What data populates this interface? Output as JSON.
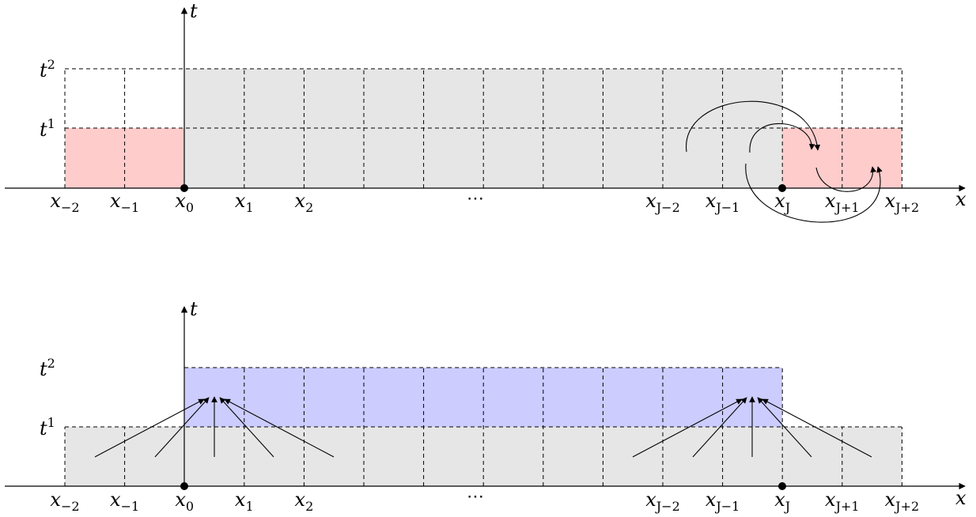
{
  "axis_labels": {
    "t": "t",
    "x": "x"
  },
  "time_labels": [
    {
      "base": "t",
      "sup": "1"
    },
    {
      "base": "t",
      "sup": "2"
    }
  ],
  "x_labels": [
    {
      "base": "x",
      "sub": "−2"
    },
    {
      "base": "x",
      "sub": "−1"
    },
    {
      "base": "x",
      "sub": "0"
    },
    {
      "base": "x",
      "sub": "1"
    },
    {
      "base": "x",
      "sub": "2"
    },
    {
      "base": "x",
      "sub": "J−2"
    },
    {
      "base": "x",
      "sub": "J−1"
    },
    {
      "base": "x",
      "sub": "J"
    },
    {
      "base": "x",
      "sub": "J+1"
    },
    {
      "base": "x",
      "sub": "J+2"
    }
  ],
  "ellipsis": "⋯",
  "colors": {
    "ghost_fill": "#ffcccc",
    "interior_fill": "#e6e6e6",
    "update_fill": "#ccccff",
    "line": "#000000"
  }
}
